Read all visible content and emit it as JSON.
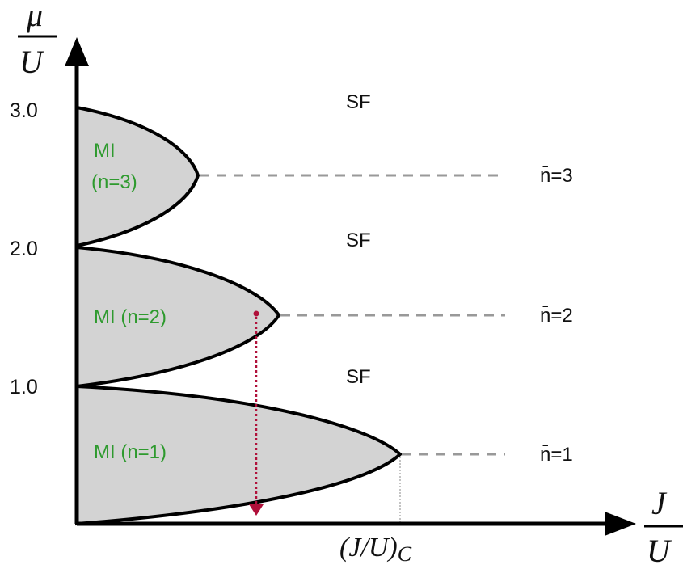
{
  "axes": {
    "y_label_top": "μ",
    "y_label_bottom": "U",
    "x_label_top": "J",
    "x_label_bottom": "U",
    "y_ticks": [
      "1.0",
      "2.0",
      "3.0"
    ],
    "critical_label": "(J/U)",
    "critical_subscript": "C"
  },
  "regions": {
    "sf_labels": [
      "SF",
      "SF",
      "SF"
    ],
    "mi_labels": [
      {
        "line1": "MI",
        "line2": "(n=3)"
      },
      {
        "line1": "MI (n=2)"
      },
      {
        "line1": "MI (n=1)"
      }
    ],
    "filling_labels": [
      "n̄=3",
      "n̄=2",
      "n̄=1"
    ]
  },
  "colors": {
    "lobe_fill": "#d3d3d3",
    "lobe_stroke": "#000000",
    "mi_text": "#2e9a2e",
    "dashed": "#999999",
    "arrow_red": "#b0103a"
  }
}
